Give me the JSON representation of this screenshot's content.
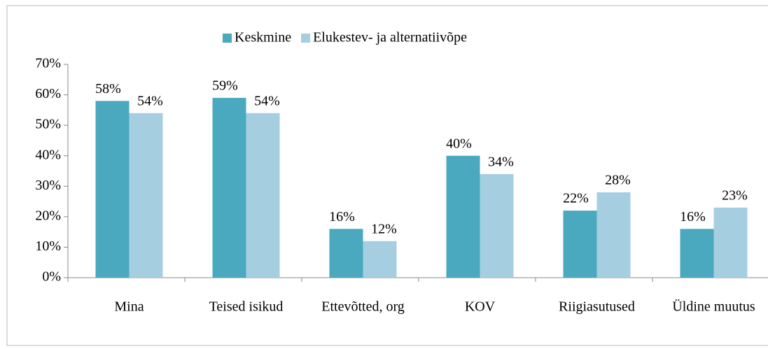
{
  "chart_data": {
    "type": "bar",
    "categories": [
      "Mina",
      "Teised isikud",
      "Ettevõtted, org",
      "KOV",
      "Riigiasutused",
      "Üldine muutus"
    ],
    "series": [
      {
        "name": "Keskmine",
        "color": "#4aa8bf",
        "values": [
          58,
          59,
          16,
          40,
          22,
          16
        ],
        "value_labels": [
          "58%",
          "59%",
          "16%",
          "40%",
          "22%",
          "16%"
        ]
      },
      {
        "name": "Elukestev- ja alternatiivõpe",
        "color": "#a5cfe0",
        "values": [
          54,
          54,
          12,
          34,
          28,
          23
        ],
        "value_labels": [
          "54%",
          "54%",
          "12%",
          "34%",
          "28%",
          "23%"
        ]
      }
    ],
    "ylim": [
      0,
      70
    ],
    "yticks": [
      {
        "value": 0,
        "label": "0%"
      },
      {
        "value": 10,
        "label": "10%"
      },
      {
        "value": 20,
        "label": "20%"
      },
      {
        "value": 30,
        "label": "30%"
      },
      {
        "value": 40,
        "label": "40%"
      },
      {
        "value": 50,
        "label": "50%"
      },
      {
        "value": 60,
        "label": "60%"
      },
      {
        "value": 70,
        "label": "70%"
      }
    ],
    "legend": "top",
    "grid": false
  }
}
